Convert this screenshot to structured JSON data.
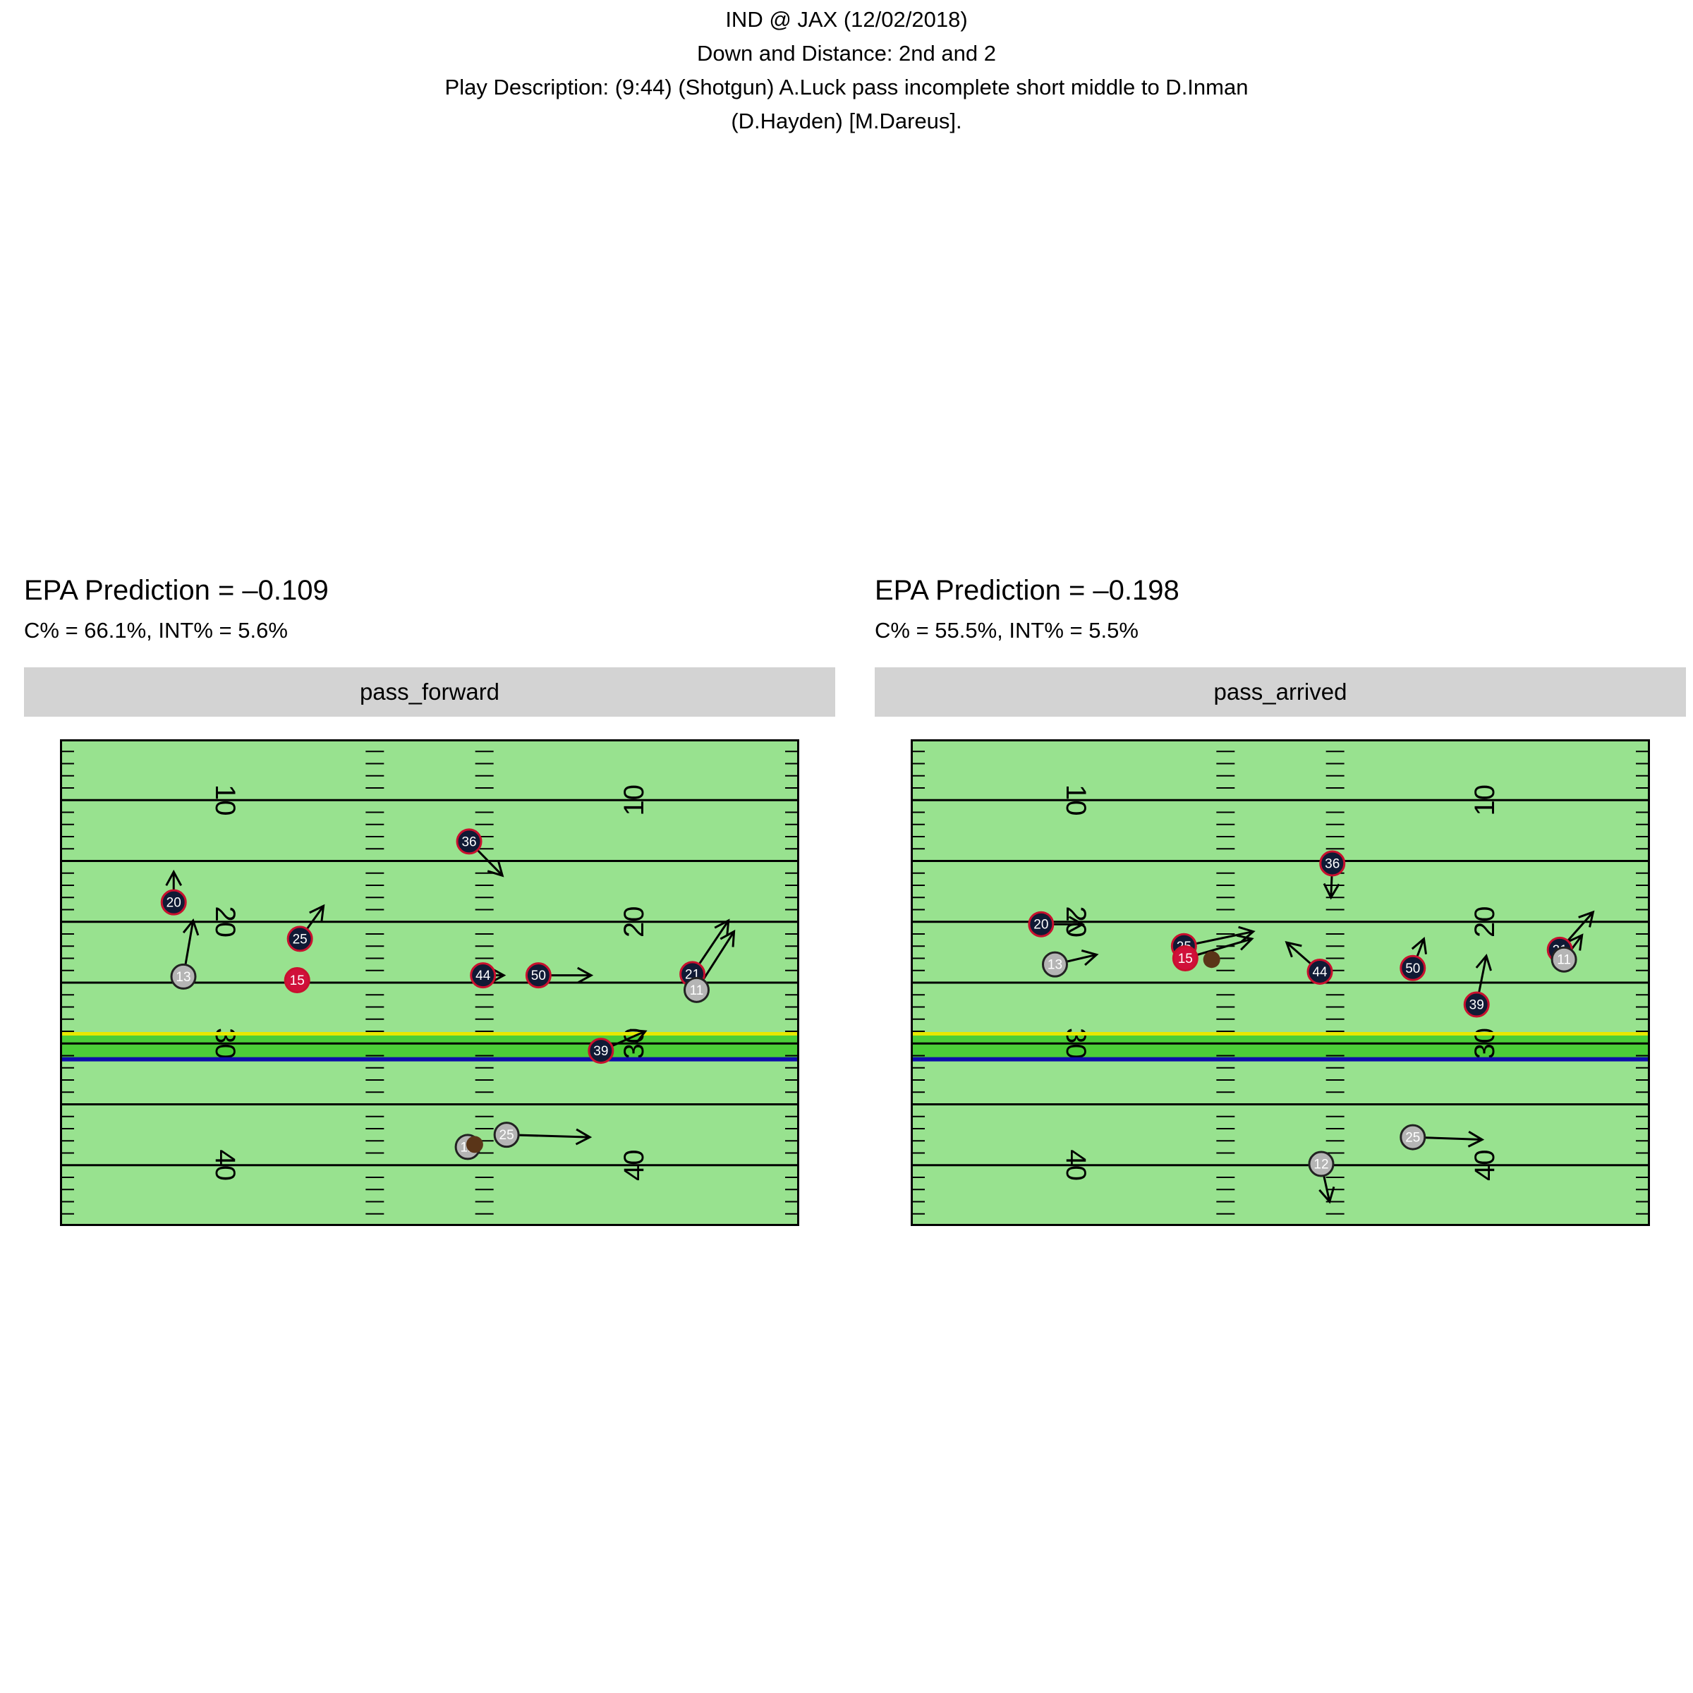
{
  "header": {
    "game": "IND @ JAX (12/02/2018)",
    "down_distance": "Down and Distance: 2nd and 2",
    "play_line1": "Play Description: (9:44) (Shotgun) A.Luck pass incomplete short middle to D.Inman",
    "play_line2": "(D.Hayden) [M.Dareus]."
  },
  "colors": {
    "field_light": "#98e28f",
    "field_dark": "#4ccd38",
    "first_down_line": "#e8e800",
    "scrimmage_line": "#0d0daa",
    "defense_fill": "#101a35",
    "defense_stroke": "#c8102e",
    "qb_fill": "#d0103a",
    "offense_fill": "#b5b5b5",
    "football": "#5a3518"
  },
  "chart_data": [
    {
      "type": "scatter",
      "facet": "pass_forward",
      "epa": "EPA Prediction = –0.109",
      "probs": "C% = 66.1%, INT% = 5.6%",
      "x_range": [
        0,
        53.3
      ],
      "y_range": [
        5,
        45
      ],
      "yard_labels": [
        {
          "label": "10",
          "y": 10
        },
        {
          "label": "20",
          "y": 20
        },
        {
          "label": "30",
          "y": 30
        },
        {
          "label": "40",
          "y": 40
        }
      ],
      "line_of_scrimmage": 31.3,
      "first_down": 29.2,
      "players": [
        {
          "number": "36",
          "team": "def",
          "x": 29.5,
          "y": 13.4,
          "dx": 2.4,
          "dy": 2.8
        },
        {
          "number": "20",
          "team": "def",
          "x": 8.2,
          "y": 18.4,
          "dx": 0.0,
          "dy": -2.5
        },
        {
          "number": "13",
          "team": "off",
          "x": 8.9,
          "y": 24.5,
          "dx": 0.7,
          "dy": -4.6
        },
        {
          "number": "25",
          "team": "def",
          "x": 17.3,
          "y": 21.4,
          "dx": 1.7,
          "dy": -2.7
        },
        {
          "number": "15",
          "team": "qb",
          "x": 17.1,
          "y": 24.8,
          "dx": 0.0,
          "dy": 0.0
        },
        {
          "number": "44",
          "team": "def",
          "x": 30.5,
          "y": 24.4,
          "dx": 1.5,
          "dy": 0.0
        },
        {
          "number": "50",
          "team": "def",
          "x": 34.5,
          "y": 24.4,
          "dx": 3.8,
          "dy": 0.0
        },
        {
          "number": "21",
          "team": "def",
          "x": 45.6,
          "y": 24.3,
          "dx": 2.6,
          "dy": -4.4
        },
        {
          "number": "11",
          "team": "off",
          "x": 45.9,
          "y": 25.6,
          "dx": 2.7,
          "dy": -4.8
        },
        {
          "number": "39",
          "team": "def",
          "x": 39.0,
          "y": 30.6,
          "dx": 3.2,
          "dy": -1.6
        },
        {
          "number": "25",
          "team": "off",
          "x": 32.2,
          "y": 37.5,
          "dx": 6.0,
          "dy": 0.2
        },
        {
          "number": "12",
          "team": "off",
          "x": 29.4,
          "y": 38.5,
          "dx": 0.0,
          "dy": 0.0
        }
      ],
      "football": {
        "x": 29.9,
        "y": 38.3
      }
    },
    {
      "type": "scatter",
      "facet": "pass_arrived",
      "epa": "EPA Prediction = –0.198",
      "probs": "C% = 55.5%, INT% = 5.5%",
      "x_range": [
        0,
        53.3
      ],
      "y_range": [
        5,
        45
      ],
      "yard_labels": [
        {
          "label": "10",
          "y": 10
        },
        {
          "label": "20",
          "y": 20
        },
        {
          "label": "30",
          "y": 30
        },
        {
          "label": "40",
          "y": 40
        }
      ],
      "line_of_scrimmage": 31.3,
      "first_down": 29.2,
      "players": [
        {
          "number": "36",
          "team": "def",
          "x": 30.4,
          "y": 15.2,
          "dx": -0.1,
          "dy": 2.8
        },
        {
          "number": "20",
          "team": "def",
          "x": 9.4,
          "y": 20.2,
          "dx": 3.0,
          "dy": 0.0
        },
        {
          "number": "13",
          "team": "off",
          "x": 10.4,
          "y": 23.5,
          "dx": 3.0,
          "dy": -0.8
        },
        {
          "number": "25",
          "team": "def",
          "x": 19.7,
          "y": 22.0,
          "dx": 5.0,
          "dy": -1.2
        },
        {
          "number": "15",
          "team": "qb",
          "x": 19.8,
          "y": 23.0,
          "dx": 4.8,
          "dy": -1.6
        },
        {
          "number": "44",
          "team": "def",
          "x": 29.5,
          "y": 24.1,
          "dx": -2.4,
          "dy": -2.4
        },
        {
          "number": "50",
          "team": "def",
          "x": 36.2,
          "y": 23.8,
          "dx": 0.8,
          "dy": -2.4
        },
        {
          "number": "21",
          "team": "def",
          "x": 46.8,
          "y": 22.3,
          "dx": 2.4,
          "dy": -3.1
        },
        {
          "number": "11",
          "team": "off",
          "x": 47.1,
          "y": 23.1,
          "dx": 1.3,
          "dy": -2.0
        },
        {
          "number": "39",
          "team": "def",
          "x": 40.8,
          "y": 26.8,
          "dx": 0.7,
          "dy": -4.0
        },
        {
          "number": "25",
          "team": "off",
          "x": 36.2,
          "y": 37.7,
          "dx": 5.0,
          "dy": 0.2
        },
        {
          "number": "12",
          "team": "off",
          "x": 29.6,
          "y": 39.9,
          "dx": 0.6,
          "dy": 3.1
        }
      ],
      "football": {
        "x": 21.7,
        "y": 23.1
      }
    }
  ]
}
